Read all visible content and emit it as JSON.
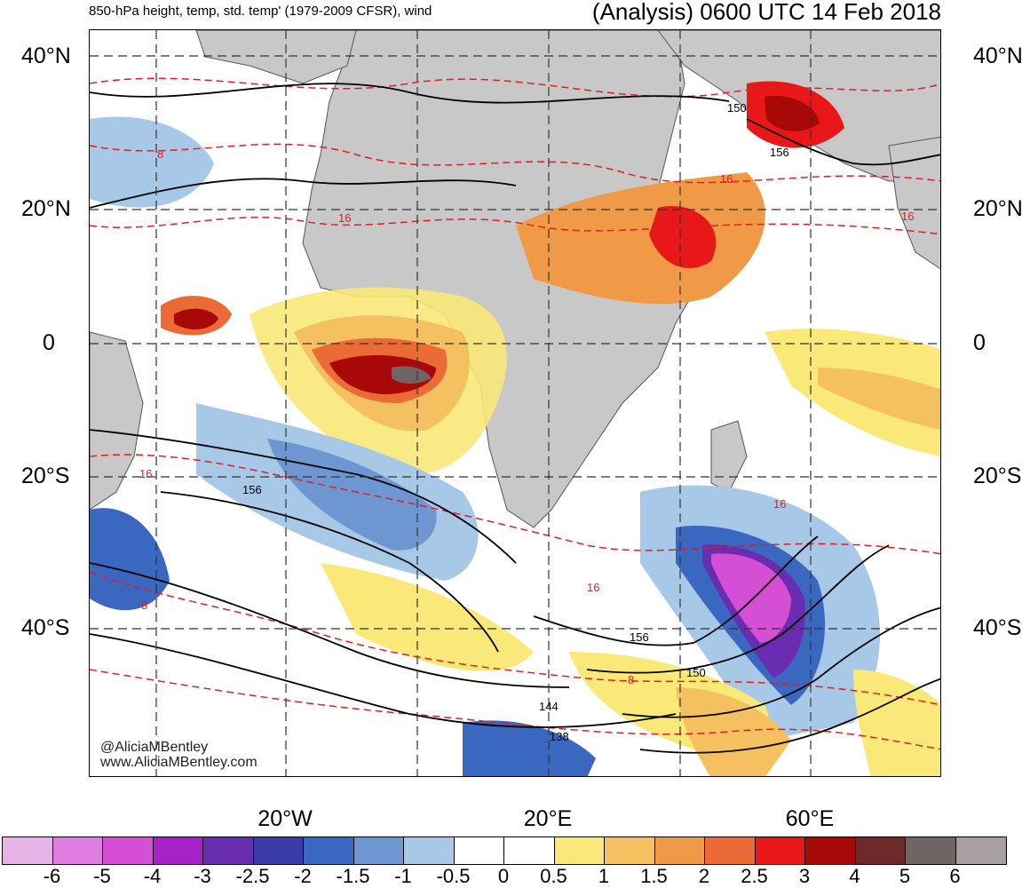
{
  "header": {
    "left_title": "850-hPa height, temp, std. temp' (1979-2009 CFSR), wind",
    "right_title": "(Analysis) 0600 UTC 14 Feb 2018"
  },
  "latitude_labels": {
    "left": [
      "40°N",
      "20°N",
      "0",
      "20°S",
      "40°S"
    ],
    "right": [
      "40°N",
      "20°N",
      "0",
      "20°S",
      "40°S"
    ]
  },
  "longitude_labels": [
    "20°W",
    "20°E",
    "60°E"
  ],
  "credit": {
    "handle": "@AliciaMBentley",
    "site": "www.AliciaMBentley.com"
  },
  "contour_labels": {
    "height": [
      "150",
      "156",
      "156",
      "156",
      "150",
      "144",
      "138"
    ],
    "temperature": [
      "8",
      "16",
      "16",
      "16",
      "16",
      "16",
      "16",
      "8",
      "8"
    ]
  },
  "colorbar": {
    "labels": [
      "-6",
      "-5",
      "-4",
      "-3",
      "-2.5",
      "-2",
      "-1.5",
      "-1",
      "-0.5",
      "0",
      "0.5",
      "1",
      "1.5",
      "2",
      "2.5",
      "3",
      "4",
      "5",
      "6"
    ],
    "colors": [
      "#e8b4e8",
      "#e07de0",
      "#d44fd4",
      "#a820c8",
      "#6a2cb0",
      "#3a3aa8",
      "#3a68c0",
      "#6e96d0",
      "#a8c8e8",
      "#ffffff",
      "#ffffff",
      "#fae878",
      "#f4c060",
      "#f09a48",
      "#ec6a36",
      "#e81818",
      "#a80808",
      "#6e2a2a",
      "#706464",
      "#a8a0a0"
    ]
  },
  "colors": {
    "land": "#c8c8c8",
    "height_contour": "#000000",
    "temperature_contour": "#e02020",
    "grid": "#333333"
  }
}
